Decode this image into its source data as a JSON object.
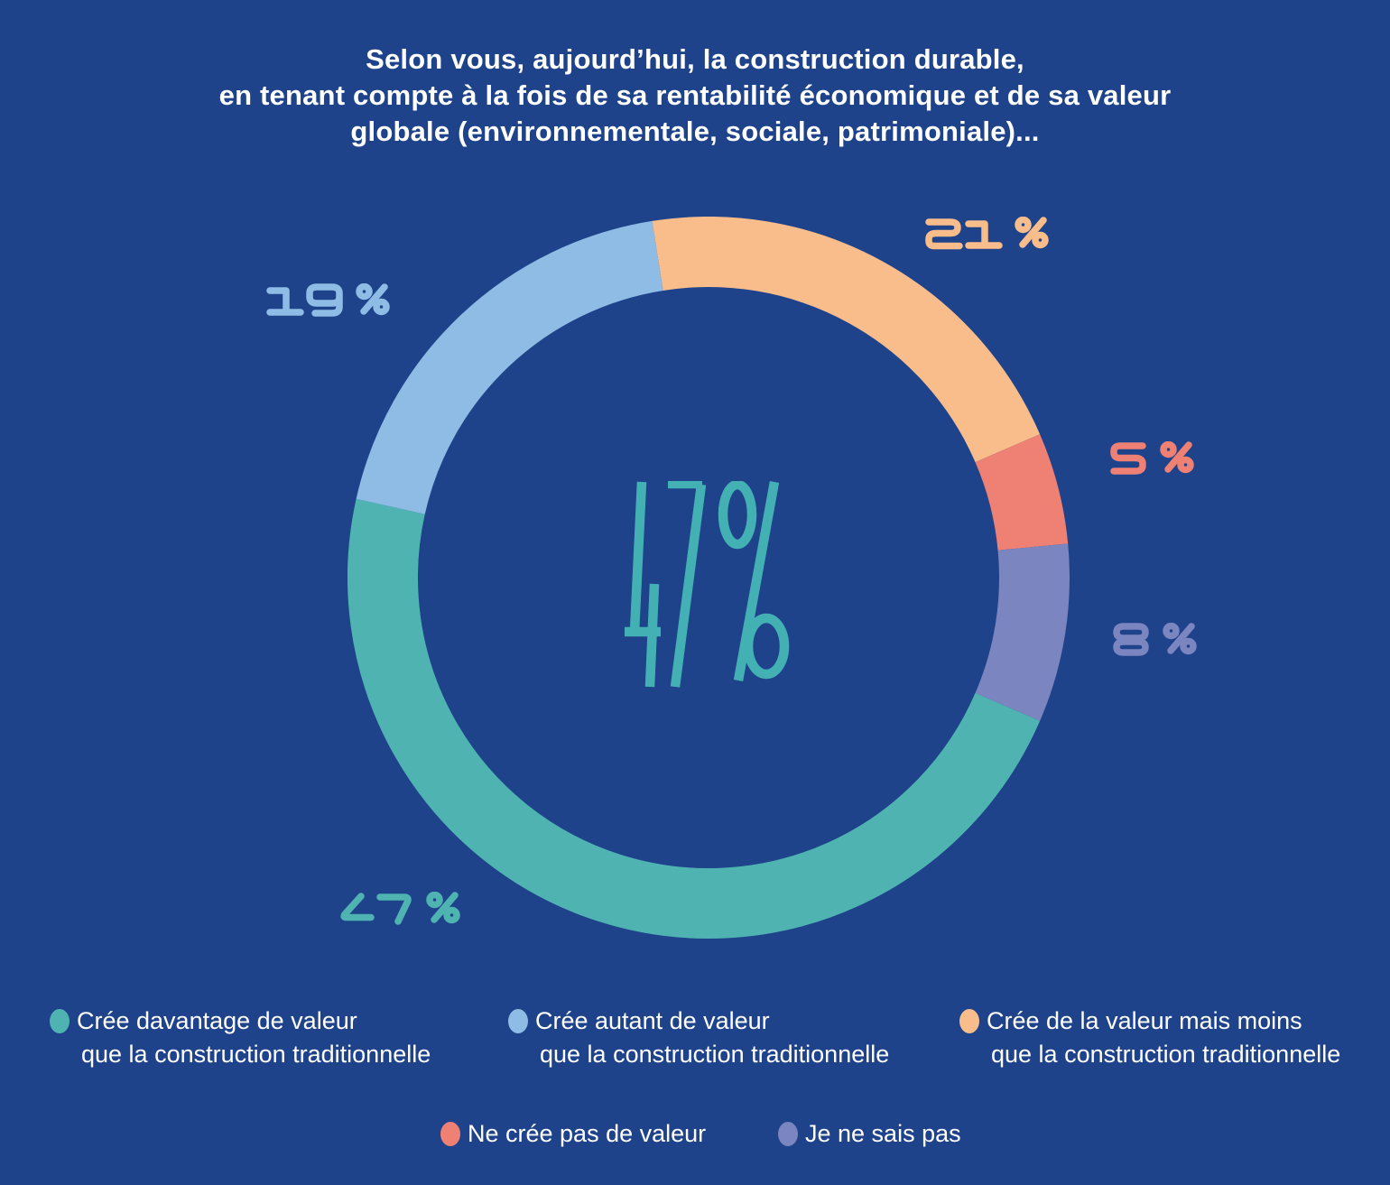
{
  "title": {
    "lines": [
      "Selon vous, aujourd’hui, la construction durable,",
      "en tenant compte à la fois de sa rentabilité économique et de sa valeur",
      "globale (environnementale, sociale, patrimoniale)..."
    ]
  },
  "colors": {
    "background": "#1e438b",
    "text": "#ffffff"
  },
  "chart_data": {
    "type": "pie",
    "subtype": "donut",
    "title": "Selon vous, aujourd’hui, la construction durable, en tenant compte à la fois de sa rentabilité économique et de sa valeur globale (environnementale, sociale, patrimoniale)...",
    "center_label": "47%",
    "center_color": "#43b1b4",
    "start_angle_deg": -9,
    "clockwise": true,
    "outer_radius_px": 400,
    "ring_thickness_px": 78,
    "legend_position": "bottom",
    "segments": [
      {
        "label": "Crée de la valeur mais moins que la construction traditionnelle",
        "value": 21,
        "color": "#f8bd8b",
        "callout": "21 %"
      },
      {
        "label": "Ne crée pas de valeur",
        "value": 5,
        "color": "#ee8174",
        "callout": "5 %"
      },
      {
        "label": "Je ne sais pas",
        "value": 8,
        "color": "#7b85bf",
        "callout": "8 %"
      },
      {
        "label": "Crée davantage de valeur que la construction traditionnelle",
        "value": 47,
        "color": "#4fb4b1",
        "callout": "47 %"
      },
      {
        "label": "Crée autant de valeur que la construction traditionnelle",
        "value": 19,
        "color": "#8fbce4",
        "callout": "19 %"
      }
    ]
  },
  "legend": {
    "row1": [
      {
        "lines": [
          "Crée davantage de valeur",
          "que la construction traditionnelle"
        ],
        "color": "#4fb4b1"
      },
      {
        "lines": [
          "Crée autant de valeur",
          "que la construction traditionnelle"
        ],
        "color": "#8fbce4"
      },
      {
        "lines": [
          "Crée de la valeur mais moins",
          "que la construction traditionnelle"
        ],
        "color": "#f8bd8b"
      }
    ],
    "row2": [
      {
        "label": "Ne crée pas de valeur",
        "color": "#ee8174"
      },
      {
        "label": "Je ne sais pas",
        "color": "#7b85bf"
      }
    ]
  }
}
